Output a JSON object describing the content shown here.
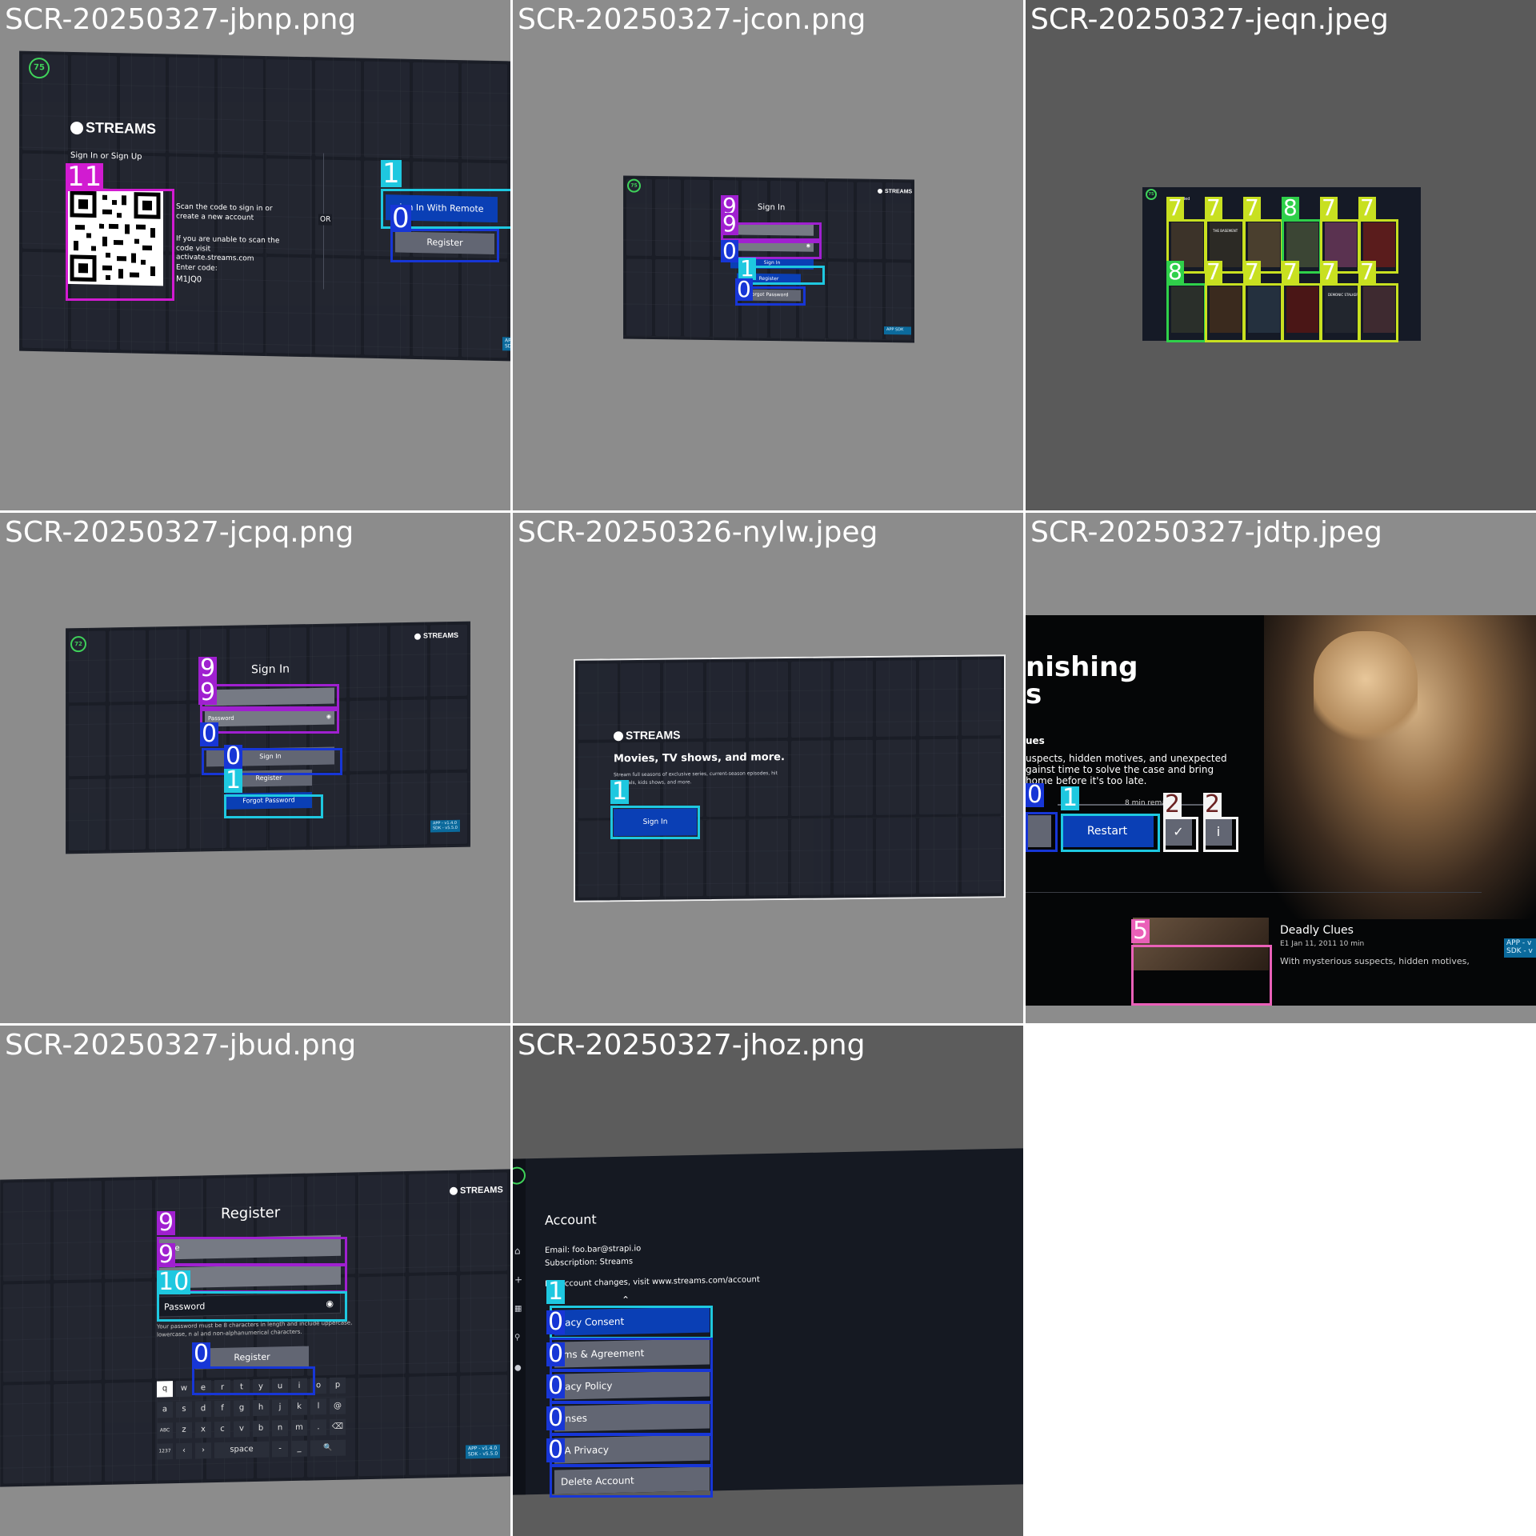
{
  "panels": [
    {
      "caption": "SCR-20250327-jbnp.png",
      "badge": "75",
      "logo": "STREAMS",
      "heading": "Sign In or Sign Up",
      "scan_text": "Scan the code to sign in or create a new account",
      "unable_text": "If you are unable to scan the code visit activate.streams.com",
      "enter_code_label": "Enter code:",
      "code": "M1JQ0",
      "or_label": "OR",
      "sign_in_remote_label": "ign In With Remote",
      "register_label": "Register",
      "version": "APP SDK",
      "tags": [
        "11",
        "1",
        "0"
      ]
    },
    {
      "caption": "SCR-20250327-jcon.png",
      "badge": "75",
      "logo": "STREAMS",
      "title": "Sign In",
      "password_partial": "ord",
      "sign_in_label": "Sign In",
      "register_label": "Register",
      "forgot_label": "Forgot Password",
      "version": "APP SDK",
      "tags": [
        "9",
        "9",
        "0",
        "1",
        "0"
      ]
    },
    {
      "caption": "SCR-20250327-jeqn.jpeg",
      "badge": "75",
      "row_label": "ded",
      "poster_titles": [
        "",
        "THE BASEMENT",
        "",
        "",
        "",
        "",
        "",
        "",
        "",
        "",
        "DEMONIC STALKER",
        ""
      ],
      "tags": [
        "7",
        "7",
        "7",
        "8",
        "7",
        "7",
        "8",
        "7",
        "7",
        "7",
        "7",
        "7"
      ]
    },
    {
      "caption": "SCR-20250327-jcpq.png",
      "badge": "72",
      "logo": "STREAMS",
      "title": "Sign In",
      "email_partial": "il",
      "password_placeholder": "Password",
      "sign_in_label": "Sign In",
      "register_label": "Register",
      "forgot_label": "Forgot Password",
      "version_line1": "APP - v1.4.0",
      "version_line2": "SDK - v5.5.0",
      "tags": [
        "9",
        "9",
        "0",
        "0",
        "1"
      ]
    },
    {
      "caption": "SCR-20250326-nylw.jpeg",
      "logo": "STREAMS",
      "headline": "Movies, TV shows, and more.",
      "subline_1": "Stream full seasons of exclusive series, current-season episodes, hit",
      "subline_2": "Originals, kids shows, and more.",
      "sign_in_label": "Sign In",
      "tags": [
        "1"
      ]
    },
    {
      "caption": "SCR-20250327-jdtp.jpeg",
      "title_line1": "nishing",
      "title_line2": "s",
      "desc_label": "ues",
      "desc_1": "uspects, hidden motives, and unexpected",
      "desc_2": "gainst time to solve the case and bring",
      "desc_3": "home before it's too late.",
      "remaining": "8 min remai",
      "restart_label": "Restart",
      "episode_title": "Deadly Clues",
      "episode_meta": "E1   Jan 11, 2011   10 min",
      "episode_desc": "With mysterious suspects, hidden motives,",
      "version": "APP - v SDK - v",
      "tags": [
        "0",
        "1",
        "2",
        "2",
        "5"
      ]
    },
    {
      "caption": "SCR-20250327-jbud.png",
      "logo": "STREAMS",
      "title": "Register",
      "name_partial": "ime",
      "password_placeholder": "Password",
      "hint_1": "Your password must be 8 characters in length and include uppercase,",
      "hint_2": "lowercase, n          al and non-alphanumerical characters.",
      "register_label": "Register",
      "keyboard_rows": [
        [
          "q",
          "w",
          "e",
          "r",
          "t",
          "y",
          "u",
          "i",
          "o",
          "p"
        ],
        [
          "a",
          "s",
          "d",
          "f",
          "g",
          "h",
          "j",
          "k",
          "l",
          "@"
        ],
        [
          "ABC",
          "z",
          "x",
          "c",
          "v",
          "b",
          "n",
          "m",
          ".",
          "⌫"
        ],
        [
          "1237",
          "‹",
          "›",
          "space",
          "-",
          "_",
          "🔍"
        ]
      ],
      "version_line1": "APP - v1.4.0",
      "version_line2": "SDK - v5.5.0",
      "tags": [
        "9",
        "9",
        "10",
        "0"
      ]
    },
    {
      "caption": "SCR-20250327-jhoz.png",
      "title": "Account",
      "email": "Email: foo.bar@strapi.io",
      "subscription": "Subscription: Streams",
      "changes": "For account changes, visit www.streams.com/account",
      "items": [
        "vacy Consent",
        "rms & Agreement",
        "vacy Policy",
        "enses",
        "PA Privacy",
        "Delete Account"
      ],
      "tags": [
        "1",
        "0",
        "0",
        "0",
        "0",
        "0"
      ]
    }
  ],
  "colors": {
    "magenta": "#d11bd1",
    "purple": "#a020d0",
    "cyan": "#1ec8e0",
    "blue": "#1736d6",
    "lime": "#c8e020",
    "green": "#2fd04a",
    "pink": "#ea60b8",
    "white": "#f4f4f4",
    "brown": "#6b2222"
  }
}
